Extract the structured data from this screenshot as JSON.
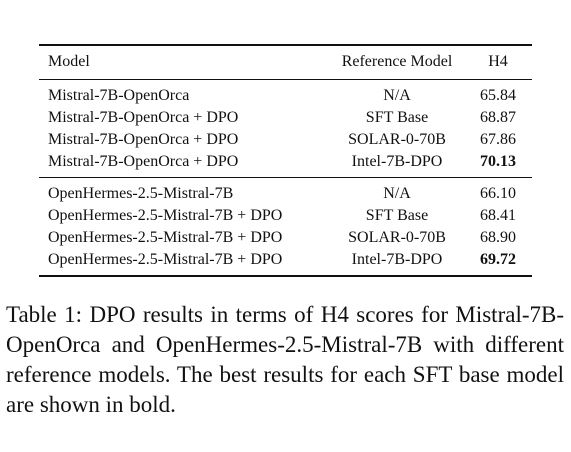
{
  "table": {
    "headers": {
      "model": "Model",
      "reference": "Reference Model",
      "score": "H4"
    },
    "groups": [
      {
        "rows": [
          {
            "model": "Mistral-7B-OpenOrca",
            "reference": "N/A",
            "h4": "65.84",
            "best": false
          },
          {
            "model": "Mistral-7B-OpenOrca + DPO",
            "reference": "SFT Base",
            "h4": "68.87",
            "best": false
          },
          {
            "model": "Mistral-7B-OpenOrca + DPO",
            "reference": "SOLAR-0-70B",
            "h4": "67.86",
            "best": false
          },
          {
            "model": "Mistral-7B-OpenOrca + DPO",
            "reference": "Intel-7B-DPO",
            "h4": "70.13",
            "best": true
          }
        ]
      },
      {
        "rows": [
          {
            "model": "OpenHermes-2.5-Mistral-7B",
            "reference": "N/A",
            "h4": "66.10",
            "best": false
          },
          {
            "model": "OpenHermes-2.5-Mistral-7B + DPO",
            "reference": "SFT Base",
            "h4": "68.41",
            "best": false
          },
          {
            "model": "OpenHermes-2.5-Mistral-7B + DPO",
            "reference": "SOLAR-0-70B",
            "h4": "68.90",
            "best": false
          },
          {
            "model": "OpenHermes-2.5-Mistral-7B + DPO",
            "reference": "Intel-7B-DPO",
            "h4": "69.72",
            "best": true
          }
        ]
      }
    ]
  },
  "caption": "Table 1: DPO results in terms of H4 scores for Mistral-7B-OpenOrca and OpenHermes-2.5-Mistral-7B with different reference models. The best results for each SFT base model are shown in bold."
}
